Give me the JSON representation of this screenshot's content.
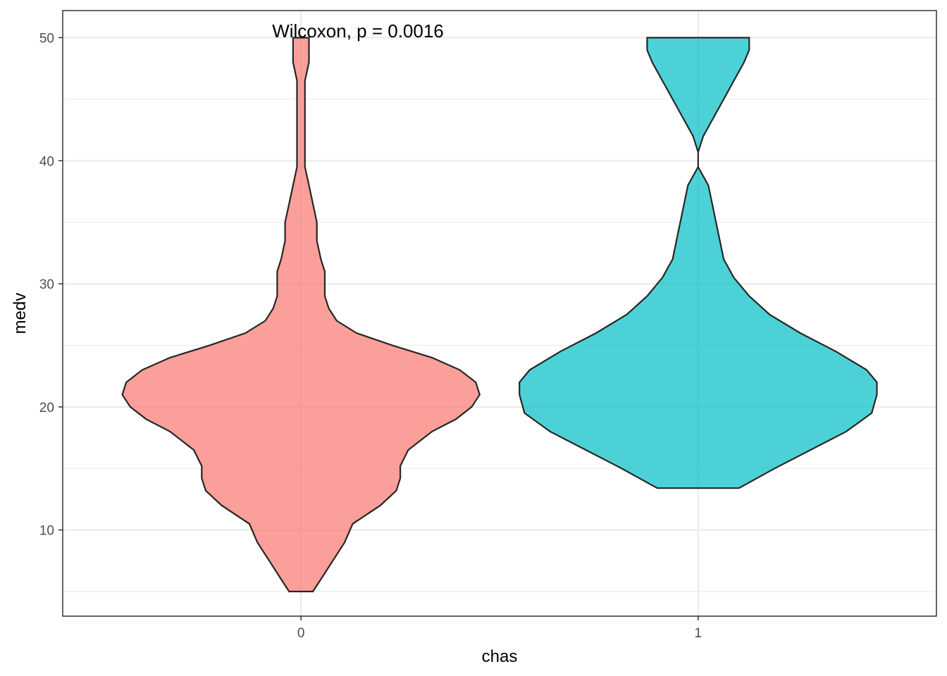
{
  "chart_data": {
    "type": "violin",
    "xlabel": "chas",
    "ylabel": "medv",
    "annotation": "Wilcoxon, p = 0.0016",
    "categories": [
      "0",
      "1"
    ],
    "ylim": [
      3,
      52.2
    ],
    "y_ticks": [
      10,
      20,
      30,
      40,
      50
    ],
    "y_minor_ticks": [
      5,
      15,
      25,
      35,
      45
    ],
    "grid": true,
    "legend": "none",
    "max_half_width": 0.45,
    "colors": [
      "#F8766D",
      "#00BFC4"
    ],
    "violins": [
      {
        "category": "0",
        "y_min": 5,
        "y_max": 50,
        "profile": [
          [
            5.0,
            0.03
          ],
          [
            6.0,
            0.05
          ],
          [
            7.5,
            0.08
          ],
          [
            9.0,
            0.11
          ],
          [
            10.5,
            0.13
          ],
          [
            12.0,
            0.2
          ],
          [
            13.2,
            0.24
          ],
          [
            14.2,
            0.25
          ],
          [
            15.2,
            0.25
          ],
          [
            16.5,
            0.27
          ],
          [
            18.0,
            0.33
          ],
          [
            19.0,
            0.39
          ],
          [
            20.0,
            0.43
          ],
          [
            21.0,
            0.45
          ],
          [
            22.0,
            0.44
          ],
          [
            23.0,
            0.4
          ],
          [
            24.0,
            0.33
          ],
          [
            25.0,
            0.23
          ],
          [
            26.0,
            0.14
          ],
          [
            27.0,
            0.09
          ],
          [
            28.0,
            0.07
          ],
          [
            29.0,
            0.06
          ],
          [
            30.0,
            0.06
          ],
          [
            31.0,
            0.06
          ],
          [
            32.0,
            0.05
          ],
          [
            33.5,
            0.04
          ],
          [
            35.0,
            0.04
          ],
          [
            36.5,
            0.03
          ],
          [
            38.0,
            0.02
          ],
          [
            39.5,
            0.01
          ],
          [
            40.5,
            0.01
          ],
          [
            42.0,
            0.01
          ],
          [
            43.5,
            0.01
          ],
          [
            45.0,
            0.01
          ],
          [
            46.5,
            0.01
          ],
          [
            48.0,
            0.02
          ],
          [
            49.0,
            0.02
          ],
          [
            50.0,
            0.02
          ]
        ]
      },
      {
        "category": "1",
        "y_min": 13.4,
        "y_max": 50,
        "profile": [
          [
            13.4,
            0.06
          ],
          [
            15.0,
            0.13
          ],
          [
            16.5,
            0.2
          ],
          [
            18.0,
            0.27
          ],
          [
            19.5,
            0.32
          ],
          [
            21.0,
            0.33
          ],
          [
            22.0,
            0.33
          ],
          [
            23.0,
            0.31
          ],
          [
            24.5,
            0.25
          ],
          [
            26.0,
            0.18
          ],
          [
            27.5,
            0.12
          ],
          [
            29.0,
            0.08
          ],
          [
            30.5,
            0.05
          ],
          [
            32.0,
            0.03
          ],
          [
            34.0,
            0.02
          ],
          [
            36.0,
            0.01
          ],
          [
            38.0,
            0.0
          ],
          [
            39.5,
            -0.02
          ],
          [
            40.7,
            -0.02
          ],
          [
            42.0,
            -0.01
          ],
          [
            43.5,
            0.01
          ],
          [
            45.0,
            0.03
          ],
          [
            46.5,
            0.05
          ],
          [
            48.0,
            0.07
          ],
          [
            49.0,
            0.08
          ],
          [
            50.0,
            0.08
          ]
        ]
      }
    ]
  }
}
